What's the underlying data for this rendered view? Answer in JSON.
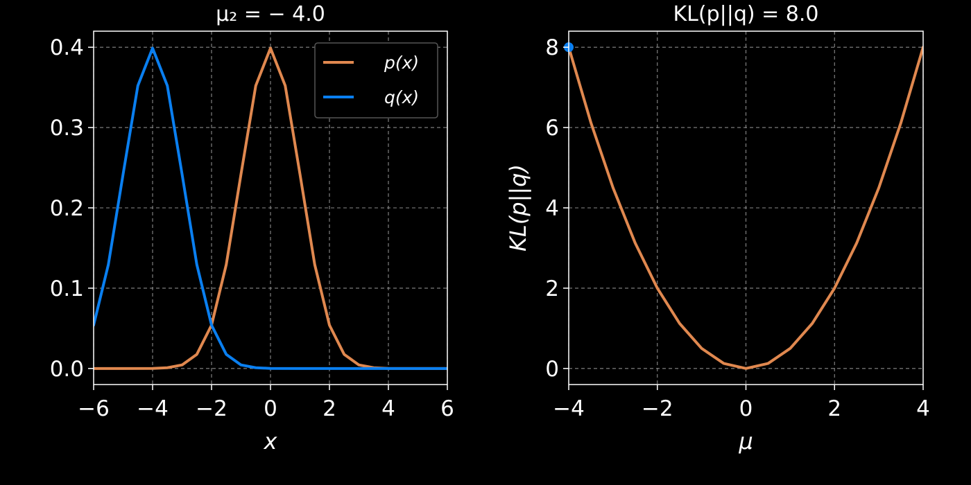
{
  "chart_data": [
    {
      "type": "line",
      "title": "μ₂ = − 4.0",
      "xlabel": "x",
      "ylabel": "",
      "xlim": [
        -6,
        6
      ],
      "ylim": [
        -0.02,
        0.42
      ],
      "xticks": [
        -6,
        -4,
        -2,
        0,
        2,
        4,
        6
      ],
      "xtick_labels": [
        "−6",
        "−4",
        "−2",
        "0",
        "2",
        "4",
        "6"
      ],
      "yticks": [
        0.0,
        0.1,
        0.2,
        0.3,
        0.4
      ],
      "ytick_labels": [
        "0.0",
        "0.1",
        "0.2",
        "0.3",
        "0.4"
      ],
      "grid": true,
      "legend": "top-right",
      "series": [
        {
          "name": "p(x)",
          "color": "#e0884f",
          "x": [
            -6,
            -5,
            -4,
            -3.5,
            -3,
            -2.5,
            -2,
            -1.5,
            -1,
            -0.5,
            0,
            0.5,
            1,
            1.5,
            2,
            2.5,
            3,
            3.5,
            4,
            5,
            6
          ],
          "y": [
            0.0,
            0.0,
            0.0001,
            0.0009,
            0.0044,
            0.0175,
            0.054,
            0.1295,
            0.242,
            0.3521,
            0.3989,
            0.3521,
            0.242,
            0.1295,
            0.054,
            0.0175,
            0.0044,
            0.0009,
            0.0001,
            0.0,
            0.0
          ]
        },
        {
          "name": "q(x)",
          "color": "#0a7ff0",
          "x": [
            -6,
            -5.5,
            -5,
            -4.5,
            -4,
            -3.5,
            -3,
            -2.5,
            -2,
            -1.5,
            -1,
            -0.5,
            0,
            1,
            2,
            3,
            4,
            5,
            6
          ],
          "y": [
            0.054,
            0.1295,
            0.242,
            0.3521,
            0.3989,
            0.3521,
            0.242,
            0.1295,
            0.054,
            0.0175,
            0.0044,
            0.0009,
            0.0001,
            0.0,
            0.0,
            0.0,
            0.0,
            0.0,
            0.0
          ]
        }
      ]
    },
    {
      "type": "line",
      "title": "KL(p||q) = 8.0",
      "xlabel": "μ",
      "ylabel": "KL(p||q)",
      "xlim": [
        -4,
        4
      ],
      "ylim": [
        -0.4,
        8.4
      ],
      "xticks": [
        -4,
        -2,
        0,
        2,
        4
      ],
      "xtick_labels": [
        "−4",
        "−2",
        "0",
        "2",
        "4"
      ],
      "yticks": [
        0,
        2,
        4,
        6,
        8
      ],
      "ytick_labels": [
        "0",
        "2",
        "4",
        "6",
        "8"
      ],
      "grid": true,
      "series": [
        {
          "color": "#e0884f",
          "x": [
            -4,
            -3.5,
            -3,
            -2.5,
            -2,
            -1.5,
            -1,
            -0.5,
            0,
            0.5,
            1,
            1.5,
            2,
            2.5,
            3,
            3.5,
            4
          ],
          "y": [
            8,
            6.125,
            4.5,
            3.125,
            2,
            1.125,
            0.5,
            0.125,
            0,
            0.125,
            0.5,
            1.125,
            2,
            3.125,
            4.5,
            6.125,
            8
          ]
        }
      ],
      "marker": {
        "x": -4,
        "y": 8,
        "color": "#0a7ff0"
      }
    }
  ]
}
